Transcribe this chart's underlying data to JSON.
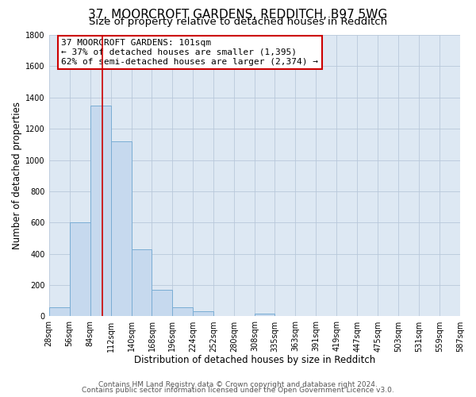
{
  "title": "37, MOORCROFT GARDENS, REDDITCH, B97 5WG",
  "subtitle": "Size of property relative to detached houses in Redditch",
  "xlabel": "Distribution of detached houses by size in Redditch",
  "ylabel": "Number of detached properties",
  "bin_edges": [
    28,
    56,
    84,
    112,
    140,
    168,
    196,
    224,
    252,
    280,
    308,
    335,
    363,
    391,
    419,
    447,
    475,
    503,
    531,
    559,
    587
  ],
  "bar_heights": [
    60,
    600,
    1350,
    1120,
    430,
    170,
    60,
    35,
    0,
    0,
    20,
    0,
    0,
    0,
    0,
    0,
    0,
    0,
    0,
    0
  ],
  "bar_color": "#c6d9ee",
  "bar_edgecolor": "#7aadd4",
  "property_size": 101,
  "vline_color": "#cc0000",
  "annotation_line1": "37 MOORCROFT GARDENS: 101sqm",
  "annotation_line2": "← 37% of detached houses are smaller (1,395)",
  "annotation_line3": "62% of semi-detached houses are larger (2,374) →",
  "annotation_box_edgecolor": "#cc0000",
  "annotation_box_facecolor": "#ffffff",
  "ylim": [
    0,
    1800
  ],
  "yticks": [
    0,
    200,
    400,
    600,
    800,
    1000,
    1200,
    1400,
    1600,
    1800
  ],
  "xtick_labels": [
    "28sqm",
    "56sqm",
    "84sqm",
    "112sqm",
    "140sqm",
    "168sqm",
    "196sqm",
    "224sqm",
    "252sqm",
    "280sqm",
    "308sqm",
    "335sqm",
    "363sqm",
    "391sqm",
    "419sqm",
    "447sqm",
    "475sqm",
    "503sqm",
    "531sqm",
    "559sqm",
    "587sqm"
  ],
  "footer_line1": "Contains HM Land Registry data © Crown copyright and database right 2024.",
  "footer_line2": "Contains public sector information licensed under the Open Government Licence v3.0.",
  "background_color": "#ffffff",
  "plot_bg_color": "#dde8f3",
  "grid_color": "#b8c8da",
  "title_fontsize": 11,
  "subtitle_fontsize": 9.5,
  "axis_label_fontsize": 8.5,
  "tick_fontsize": 7,
  "annotation_fontsize": 8,
  "footer_fontsize": 6.5
}
